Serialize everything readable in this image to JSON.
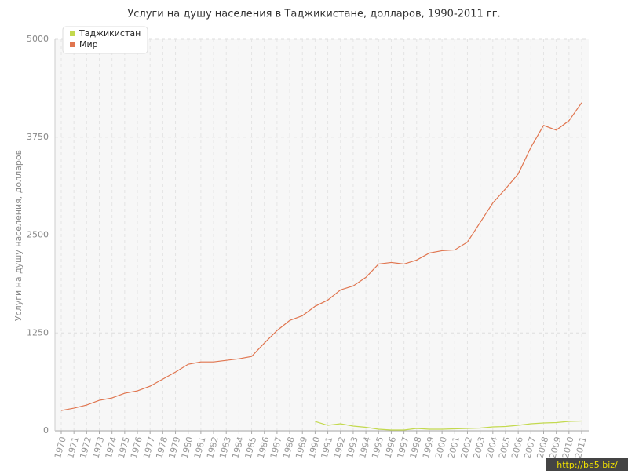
{
  "chart_data": {
    "type": "line",
    "title": "Услуги на душу населения в Таджикистане, долларов, 1990-2011 гг.",
    "y_label": "Услуги на душу населения, долларов",
    "watermark": "http://be5.biz/",
    "categories": [
      "1970",
      "1971",
      "1972",
      "1973",
      "1974",
      "1975",
      "1976",
      "1977",
      "1978",
      "1979",
      "1980",
      "1981",
      "1982",
      "1983",
      "1984",
      "1985",
      "1986",
      "1987",
      "1988",
      "1989",
      "1990",
      "1991",
      "1992",
      "1993",
      "1994",
      "1995",
      "1996",
      "1997",
      "1998",
      "1999",
      "2000",
      "2001",
      "2002",
      "2003",
      "2004",
      "2005",
      "2006",
      "2007",
      "2008",
      "2009",
      "2010",
      "2011"
    ],
    "series": [
      {
        "name": "Таджикистан",
        "color": "#c3d94e",
        "values": [
          null,
          null,
          null,
          null,
          null,
          null,
          null,
          null,
          null,
          null,
          null,
          null,
          null,
          null,
          null,
          null,
          null,
          null,
          null,
          null,
          120,
          70,
          90,
          60,
          45,
          20,
          10,
          10,
          30,
          20,
          20,
          25,
          30,
          35,
          50,
          55,
          70,
          90,
          100,
          105,
          120,
          125
        ]
      },
      {
        "name": "Мир",
        "color": "#e0754f",
        "values": [
          260,
          290,
          330,
          390,
          420,
          480,
          510,
          570,
          660,
          750,
          850,
          880,
          880,
          900,
          920,
          950,
          1120,
          1280,
          1410,
          1470,
          1590,
          1670,
          1800,
          1850,
          1960,
          2130,
          2150,
          2130,
          2180,
          2270,
          2300,
          2310,
          2410,
          2660,
          2910,
          3090,
          3280,
          3620,
          3900,
          3840,
          3960,
          4190
        ]
      }
    ],
    "ylim": [
      0,
      5000
    ],
    "yticks": [
      0,
      1250,
      2500,
      3750,
      5000
    ],
    "grid": true,
    "legend": "top-left"
  }
}
